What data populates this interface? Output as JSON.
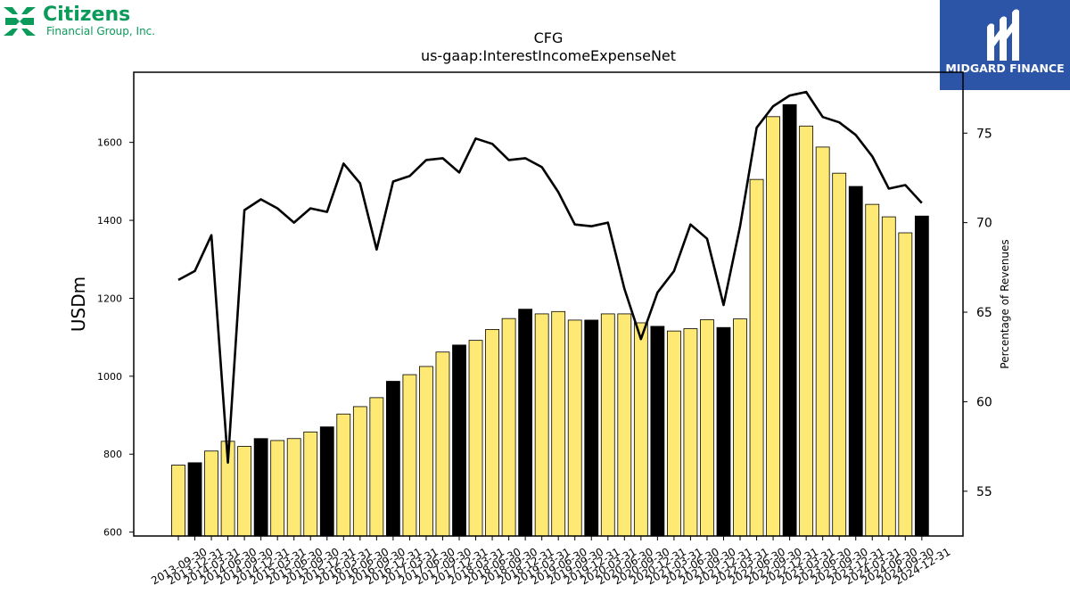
{
  "logos": {
    "left": {
      "brand": "Citizens",
      "subtitle": "Financial Group, Inc."
    },
    "right": {
      "brand": "MIDGARD FINANCE"
    }
  },
  "colors": {
    "bar_yellow": "#fde974",
    "bar_black": "#000000",
    "line": "#000000"
  },
  "chart_data": {
    "type": "bar",
    "title": "CFG",
    "subtitle": "us-gaap:InterestIncomeExpenseNet",
    "ylabel": "USDm",
    "y2label": "Percentage of Revenues",
    "ylim": [
      590,
      1780
    ],
    "y2lim": [
      52.5,
      78.4
    ],
    "yticks": [
      600,
      800,
      1000,
      1200,
      1400,
      1600
    ],
    "y2ticks": [
      55,
      60,
      65,
      70,
      75
    ],
    "grid": false,
    "categories": [
      "2013-09-30",
      "2013-12-31",
      "2014-03-31",
      "2014-06-30",
      "2014-09-30",
      "2014-12-31",
      "2015-03-31",
      "2015-06-30",
      "2015-09-30",
      "2015-12-31",
      "2016-03-31",
      "2016-06-30",
      "2016-09-30",
      "2016-12-31",
      "2017-03-31",
      "2017-06-30",
      "2017-09-30",
      "2017-12-31",
      "2018-03-31",
      "2018-06-30",
      "2018-09-30",
      "2018-12-31",
      "2019-03-31",
      "2019-06-30",
      "2019-09-30",
      "2019-12-31",
      "2020-03-31",
      "2020-06-30",
      "2020-09-30",
      "2020-12-31",
      "2021-03-31",
      "2021-06-30",
      "2021-09-30",
      "2021-12-31",
      "2022-03-31",
      "2022-06-30",
      "2022-09-30",
      "2022-12-31",
      "2023-03-31",
      "2023-06-30",
      "2023-09-30",
      "2023-12-31",
      "2024-03-31",
      "2024-06-30",
      "2024-09-30",
      "2024-12-31"
    ],
    "series": [
      {
        "type": "bar",
        "values": [
          772,
          778,
          808,
          833,
          820,
          840,
          835,
          840,
          857,
          870,
          903,
          922,
          945,
          987,
          1004,
          1025,
          1062,
          1080,
          1092,
          1120,
          1148,
          1172,
          1160,
          1166,
          1144,
          1144,
          1160,
          1160,
          1137,
          1128,
          1116,
          1122,
          1145,
          1125,
          1147,
          1505,
          1666,
          1697,
          1642,
          1588,
          1521,
          1487,
          1441,
          1409,
          1368,
          1411
        ],
        "highlight": [
          false,
          true,
          false,
          false,
          false,
          true,
          false,
          false,
          false,
          true,
          false,
          false,
          false,
          true,
          false,
          false,
          false,
          true,
          false,
          false,
          false,
          true,
          false,
          false,
          false,
          true,
          false,
          false,
          false,
          true,
          false,
          false,
          false,
          true,
          false,
          false,
          false,
          true,
          false,
          false,
          false,
          true,
          false,
          false,
          false,
          true
        ]
      },
      {
        "type": "line",
        "axis": "right",
        "values": [
          66.8,
          67.3,
          69.3,
          56.6,
          70.7,
          71.3,
          70.8,
          70.0,
          70.8,
          70.6,
          73.3,
          72.2,
          68.5,
          72.3,
          72.6,
          73.5,
          73.6,
          72.8,
          74.7,
          74.4,
          73.5,
          73.6,
          73.1,
          71.7,
          69.9,
          69.8,
          70.0,
          66.3,
          63.5,
          66.1,
          67.3,
          69.9,
          69.1,
          65.4,
          69.8,
          75.3,
          76.5,
          77.1,
          77.3,
          75.9,
          75.6,
          74.9,
          73.7,
          71.9,
          72.1,
          71.1
        ]
      }
    ]
  }
}
